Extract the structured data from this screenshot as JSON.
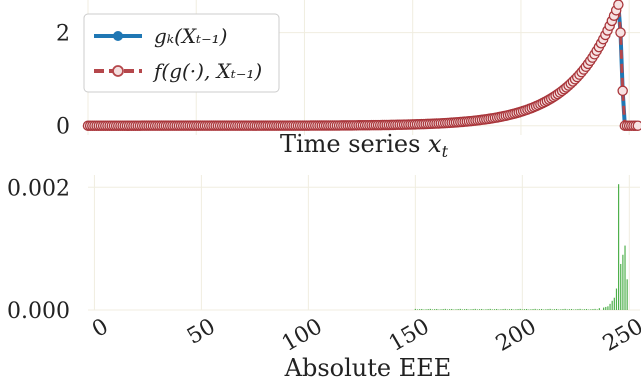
{
  "chart_data": [
    {
      "type": "line",
      "xlabel": "Time series x_t",
      "xlabel_main": "Time series ",
      "xlabel_var": "x",
      "xlabel_sub": "t",
      "xlim": [
        0,
        255
      ],
      "ylim": [
        -0.2,
        2.7
      ],
      "yticks": [
        0,
        2
      ],
      "ytick_labels": [
        "0",
        "2"
      ],
      "grid": true,
      "legend_position": "top-left",
      "series": [
        {
          "name": "g_k(X_{t-1})",
          "color": "#1f77b4",
          "style": "solid line with circle markers",
          "shape": "exponential growth from 0 at x=0 to 2.6 at x=245, then sharp drop to 0 at x=248"
        },
        {
          "name": "f(g(·), X_{t-1})",
          "color": "#b5474b",
          "style": "dashed line with open circle markers",
          "shape": "same as g_k(X_{t-1})"
        }
      ],
      "legend_labels": [
        "gₖ(Xₜ₋₁)",
        "f(g(·), Xₜ₋₁)"
      ]
    },
    {
      "type": "bar",
      "xlabel": "Absolute EEE",
      "ylabel": "",
      "xlim": [
        -3,
        255
      ],
      "ylim": [
        0,
        0.0022
      ],
      "xticks": [
        0,
        50,
        100,
        150,
        200,
        250
      ],
      "xtick_labels": [
        "0",
        "50",
        "100",
        "150",
        "200",
        "250"
      ],
      "yticks": [
        0,
        0.002
      ],
      "ytick_labels": [
        "0.000",
        "0.002"
      ],
      "grid": true,
      "bar_color": "#4daf4a",
      "nonzero_bars": {
        "x": [
          236,
          238,
          239,
          240,
          241,
          242,
          243,
          244,
          245,
          246,
          247,
          248,
          249
        ],
        "values": [
          3e-05,
          4e-05,
          5e-05,
          6e-05,
          0.0001,
          0.00015,
          0.0002,
          0.00035,
          0.00205,
          0.00075,
          0.0009,
          0.00105,
          0.0005
        ]
      },
      "baseline_note": "tiny noise bars approx 0.00001 for x in 150–235"
    }
  ]
}
